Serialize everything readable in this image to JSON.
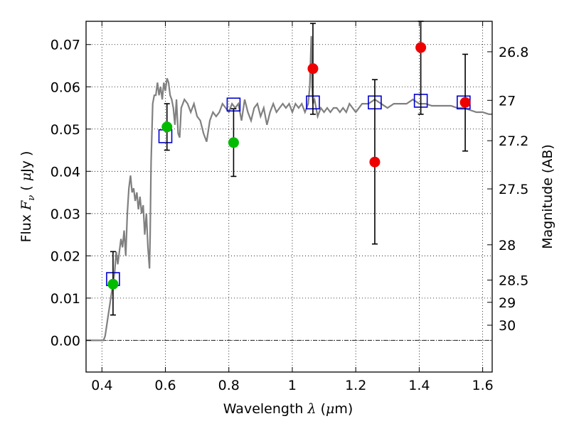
{
  "chart_data": {
    "type": "scatter",
    "xlabel": {
      "prefix": "Wavelength  ",
      "var": "λ",
      "unit_open": " (",
      "unit_var": "μ",
      "unit_rest": "m)"
    },
    "ylabel": {
      "prefix": "Flux  ",
      "var": "F",
      "sub": "ν",
      "unit_open": "  ( ",
      "unit_var": "μ",
      "unit_rest": "Jy )"
    },
    "y2label": "Magnitude (AB)",
    "xlim": [
      0.35,
      1.63
    ],
    "ylim": [
      -0.0075,
      0.0755
    ],
    "xticks": [
      {
        "v": 0.4,
        "label": "0.4"
      },
      {
        "v": 0.6,
        "label": "0.6"
      },
      {
        "v": 0.8,
        "label": "0.8"
      },
      {
        "v": 1.0,
        "label": "1"
      },
      {
        "v": 1.2,
        "label": "1.2"
      },
      {
        "v": 1.4,
        "label": "1.4"
      },
      {
        "v": 1.6,
        "label": "1.6"
      }
    ],
    "yticks": [
      {
        "v": 0.0,
        "label": "0.00"
      },
      {
        "v": 0.01,
        "label": "0.01"
      },
      {
        "v": 0.02,
        "label": "0.02"
      },
      {
        "v": 0.03,
        "label": "0.03"
      },
      {
        "v": 0.04,
        "label": "0.04"
      },
      {
        "v": 0.05,
        "label": "0.05"
      },
      {
        "v": 0.06,
        "label": "0.06"
      },
      {
        "v": 0.07,
        "label": "0.07"
      }
    ],
    "mag_ticks": [
      {
        "v": 26.8,
        "label": "26.8"
      },
      {
        "v": 27.0,
        "label": "27"
      },
      {
        "v": 27.2,
        "label": "27.2"
      },
      {
        "v": 27.5,
        "label": "27.5"
      },
      {
        "v": 28.0,
        "label": "28"
      },
      {
        "v": 28.5,
        "label": "28.5"
      },
      {
        "v": 29.0,
        "label": "29"
      },
      {
        "v": 30.0,
        "label": "30"
      }
    ],
    "grid": true,
    "zero_line": true,
    "sed_model": {
      "color": "#808080",
      "points": [
        [
          0.35,
          0.0
        ],
        [
          0.4,
          0.0
        ],
        [
          0.405,
          0.0
        ],
        [
          0.41,
          0.001
        ],
        [
          0.42,
          0.006
        ],
        [
          0.43,
          0.011
        ],
        [
          0.44,
          0.016
        ],
        [
          0.445,
          0.021
        ],
        [
          0.45,
          0.018
        ],
        [
          0.46,
          0.024
        ],
        [
          0.465,
          0.022
        ],
        [
          0.47,
          0.026
        ],
        [
          0.475,
          0.02
        ],
        [
          0.48,
          0.03
        ],
        [
          0.485,
          0.036
        ],
        [
          0.49,
          0.039
        ],
        [
          0.495,
          0.035
        ],
        [
          0.5,
          0.036
        ],
        [
          0.505,
          0.033
        ],
        [
          0.51,
          0.035
        ],
        [
          0.515,
          0.031
        ],
        [
          0.52,
          0.034
        ],
        [
          0.525,
          0.03
        ],
        [
          0.53,
          0.032
        ],
        [
          0.535,
          0.025
        ],
        [
          0.54,
          0.03
        ],
        [
          0.545,
          0.022
        ],
        [
          0.55,
          0.017
        ],
        [
          0.552,
          0.025
        ],
        [
          0.555,
          0.042
        ],
        [
          0.56,
          0.056
        ],
        [
          0.565,
          0.058
        ],
        [
          0.57,
          0.058
        ],
        [
          0.575,
          0.061
        ],
        [
          0.58,
          0.058
        ],
        [
          0.585,
          0.06
        ],
        [
          0.59,
          0.057
        ],
        [
          0.595,
          0.061
        ],
        [
          0.6,
          0.059
        ],
        [
          0.605,
          0.062
        ],
        [
          0.61,
          0.061
        ],
        [
          0.615,
          0.058
        ],
        [
          0.62,
          0.057
        ],
        [
          0.625,
          0.055
        ],
        [
          0.63,
          0.051
        ],
        [
          0.635,
          0.057
        ],
        [
          0.64,
          0.049
        ],
        [
          0.645,
          0.048
        ],
        [
          0.65,
          0.055
        ],
        [
          0.66,
          0.057
        ],
        [
          0.67,
          0.056
        ],
        [
          0.68,
          0.054
        ],
        [
          0.69,
          0.056
        ],
        [
          0.7,
          0.053
        ],
        [
          0.71,
          0.052
        ],
        [
          0.72,
          0.049
        ],
        [
          0.73,
          0.047
        ],
        [
          0.74,
          0.052
        ],
        [
          0.75,
          0.054
        ],
        [
          0.76,
          0.053
        ],
        [
          0.77,
          0.054
        ],
        [
          0.78,
          0.056
        ],
        [
          0.79,
          0.055
        ],
        [
          0.8,
          0.054
        ],
        [
          0.81,
          0.056
        ],
        [
          0.82,
          0.055
        ],
        [
          0.83,
          0.056
        ],
        [
          0.84,
          0.052
        ],
        [
          0.85,
          0.057
        ],
        [
          0.86,
          0.054
        ],
        [
          0.87,
          0.052
        ],
        [
          0.88,
          0.055
        ],
        [
          0.89,
          0.056
        ],
        [
          0.9,
          0.053
        ],
        [
          0.91,
          0.055
        ],
        [
          0.92,
          0.051
        ],
        [
          0.93,
          0.054
        ],
        [
          0.94,
          0.056
        ],
        [
          0.95,
          0.054
        ],
        [
          0.96,
          0.055
        ],
        [
          0.97,
          0.056
        ],
        [
          0.98,
          0.055
        ],
        [
          0.99,
          0.056
        ],
        [
          1.0,
          0.054
        ],
        [
          1.01,
          0.056
        ],
        [
          1.02,
          0.055
        ],
        [
          1.03,
          0.056
        ],
        [
          1.04,
          0.054
        ],
        [
          1.05,
          0.056
        ],
        [
          1.055,
          0.06
        ],
        [
          1.06,
          0.072
        ],
        [
          1.062,
          0.061
        ],
        [
          1.065,
          0.056
        ],
        [
          1.07,
          0.057
        ],
        [
          1.08,
          0.053
        ],
        [
          1.09,
          0.055
        ],
        [
          1.1,
          0.054
        ],
        [
          1.11,
          0.055
        ],
        [
          1.12,
          0.054
        ],
        [
          1.13,
          0.055
        ],
        [
          1.14,
          0.055
        ],
        [
          1.15,
          0.054
        ],
        [
          1.16,
          0.055
        ],
        [
          1.17,
          0.054
        ],
        [
          1.18,
          0.056
        ],
        [
          1.2,
          0.054
        ],
        [
          1.22,
          0.056
        ],
        [
          1.24,
          0.056
        ],
        [
          1.26,
          0.057
        ],
        [
          1.28,
          0.056
        ],
        [
          1.3,
          0.055
        ],
        [
          1.32,
          0.056
        ],
        [
          1.34,
          0.056
        ],
        [
          1.36,
          0.056
        ],
        [
          1.38,
          0.057
        ],
        [
          1.4,
          0.056
        ],
        [
          1.42,
          0.056
        ],
        [
          1.44,
          0.0555
        ],
        [
          1.46,
          0.0555
        ],
        [
          1.48,
          0.0555
        ],
        [
          1.5,
          0.0555
        ],
        [
          1.52,
          0.055
        ],
        [
          1.54,
          0.055
        ],
        [
          1.56,
          0.0545
        ],
        [
          1.58,
          0.054
        ],
        [
          1.6,
          0.054
        ],
        [
          1.62,
          0.0535
        ],
        [
          1.63,
          0.0535
        ]
      ]
    },
    "model_photometry": {
      "color": "#0000cc",
      "points": [
        {
          "x": 0.435,
          "y": 0.0145
        },
        {
          "x": 0.6,
          "y": 0.0483
        },
        {
          "x": 0.815,
          "y": 0.0558
        },
        {
          "x": 1.065,
          "y": 0.0563
        },
        {
          "x": 1.26,
          "y": 0.0563
        },
        {
          "x": 1.405,
          "y": 0.0567
        },
        {
          "x": 1.54,
          "y": 0.0563
        }
      ]
    },
    "series": [
      {
        "color": "#00bb00",
        "points": [
          {
            "x": 0.435,
            "y": 0.0133,
            "ylo": 0.006,
            "yhi": 0.021
          },
          {
            "x": 0.605,
            "y": 0.0505,
            "ylo": 0.045,
            "yhi": 0.056
          },
          {
            "x": 0.815,
            "y": 0.0468,
            "ylo": 0.0388,
            "yhi": 0.0548
          }
        ]
      },
      {
        "color": "#ee0000",
        "points": [
          {
            "x": 1.065,
            "y": 0.0643,
            "ylo": 0.0535,
            "yhi": 0.075
          },
          {
            "x": 1.26,
            "y": 0.0422,
            "ylo": 0.0228,
            "yhi": 0.0617
          },
          {
            "x": 1.405,
            "y": 0.0693,
            "ylo": 0.0535,
            "yhi": 0.0755
          },
          {
            "x": 1.545,
            "y": 0.0563,
            "ylo": 0.0448,
            "yhi": 0.0677
          }
        ]
      }
    ]
  }
}
